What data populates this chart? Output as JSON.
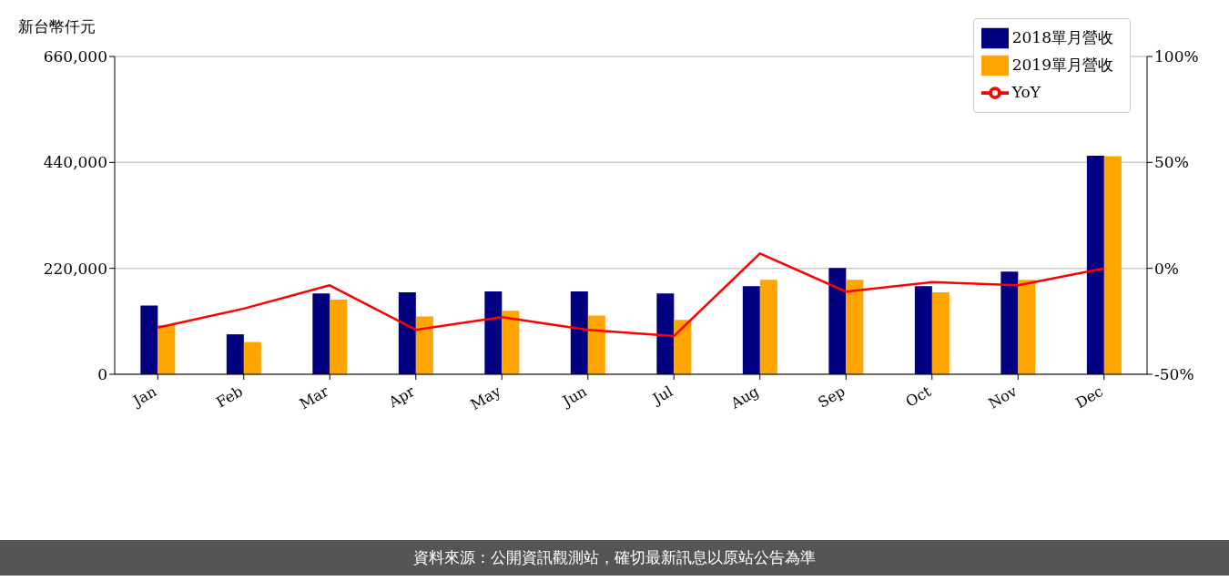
{
  "chart_data": {
    "type": "bar",
    "ylabel": "新台幣仟元",
    "categories": [
      "Jan",
      "Feb",
      "Mar",
      "Apr",
      "May",
      "Jun",
      "Jul",
      "Aug",
      "Sep",
      "Oct",
      "Nov",
      "Dec"
    ],
    "series": [
      {
        "name": "2018單月營收",
        "color": "#000080",
        "values": [
          143000,
          83000,
          168000,
          170000,
          172000,
          172000,
          168000,
          183000,
          221000,
          183000,
          213000,
          454000
        ]
      },
      {
        "name": "2019單月營收",
        "color": "#ffa500",
        "values": [
          102000,
          67000,
          155000,
          120000,
          132000,
          122000,
          113000,
          196000,
          196000,
          170000,
          196000,
          453000
        ]
      },
      {
        "name": "YoY",
        "type": "line",
        "axis": "y2",
        "color": "#ff0000",
        "values": [
          -28,
          -19,
          -8,
          -29,
          -23,
          -29,
          -32,
          7,
          -11,
          -6.5,
          -8,
          0
        ]
      }
    ],
    "ylim": [
      0,
      660000
    ],
    "yticks": [
      {
        "value": 0,
        "label": "0"
      },
      {
        "value": 220000,
        "label": "220,000"
      },
      {
        "value": 440000,
        "label": "440,000"
      },
      {
        "value": 660000,
        "label": "660,000"
      }
    ],
    "y2lim": [
      -50,
      100
    ],
    "y2ticks": [
      {
        "value": -50,
        "label": "-50%"
      },
      {
        "value": 0,
        "label": "0%"
      },
      {
        "value": 50,
        "label": "50%"
      },
      {
        "value": 100,
        "label": "100%"
      }
    ],
    "grid": "y",
    "legend": "top right",
    "marker": "none",
    "line_style": "solid",
    "annotations": [
      "資料來源：公開資訊觀測站，確切最新訊息以原站公告為準"
    ]
  }
}
